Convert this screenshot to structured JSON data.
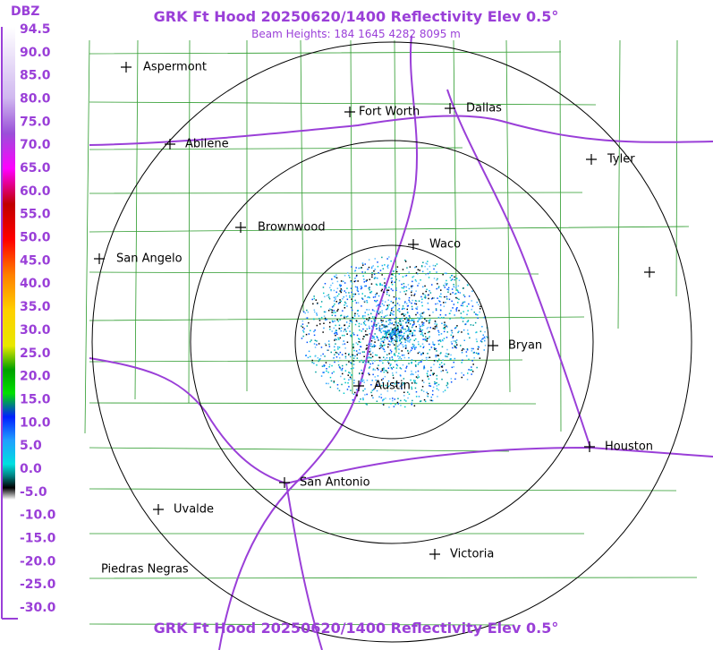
{
  "header": {
    "title": "GRK Ft Hood 20250620/1400 Reflectivity Elev 0.5°",
    "subtitle": "Beam Heights: 184 1645 4282 8095 m"
  },
  "footer": {
    "title": "GRK Ft Hood 20250620/1400 Reflectivity Elev 0.5°"
  },
  "legend": {
    "unit": "DBZ",
    "labels": [
      "94.5",
      "90.0",
      "85.0",
      "80.0",
      "75.0",
      "70.0",
      "65.0",
      "60.0",
      "55.0",
      "50.0",
      "45.0",
      "40.0",
      "35.0",
      "30.0",
      "25.0",
      "20.0",
      "15.0",
      "10.0",
      "5.0",
      "0.0",
      "-5.0",
      "-10.0",
      "-15.0",
      "-20.0",
      "-25.0",
      "-30.0"
    ]
  },
  "cities": [
    {
      "name": "Aspermont"
    },
    {
      "name": "Fort Worth"
    },
    {
      "name": "Dallas"
    },
    {
      "name": "Abilene"
    },
    {
      "name": "Tyler"
    },
    {
      "name": "Brownwood"
    },
    {
      "name": "Waco"
    },
    {
      "name": "San Angelo"
    },
    {
      "name": "Bryan"
    },
    {
      "name": "Austin"
    },
    {
      "name": "Houston"
    },
    {
      "name": "San Antonio"
    },
    {
      "name": "Uvalde"
    },
    {
      "name": "Piedras Negras"
    },
    {
      "name": "Victoria"
    }
  ]
}
